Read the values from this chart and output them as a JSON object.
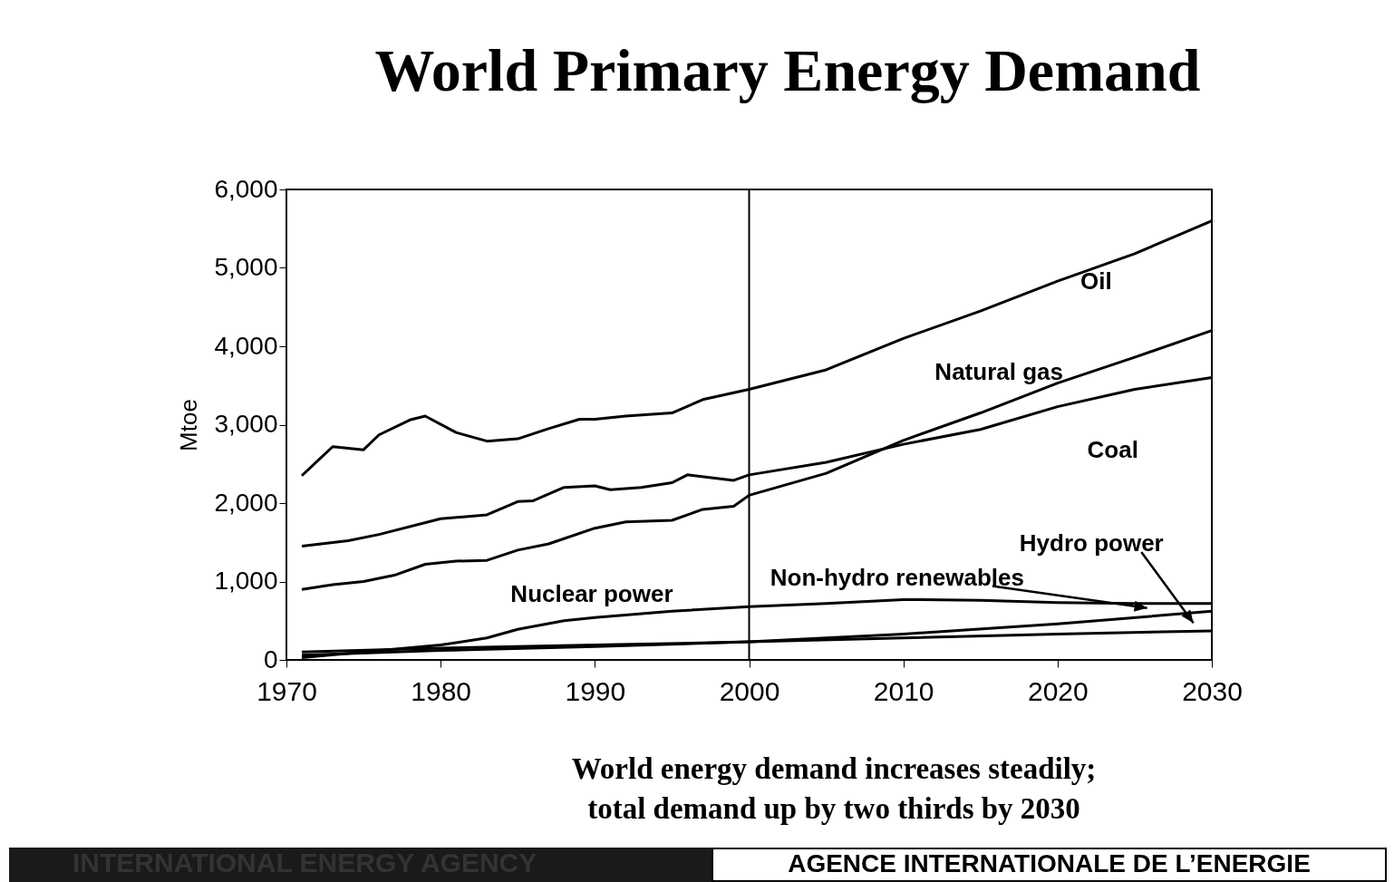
{
  "chart_data": {
    "type": "line",
    "title": "World Primary Energy Demand",
    "ylabel": "Mtoe",
    "xlim": [
      1970,
      2030
    ],
    "xticks": [
      1970,
      1980,
      1990,
      2000,
      2010,
      2020,
      2030
    ],
    "ylim": [
      0,
      6000
    ],
    "yticks": [
      {
        "value": 0,
        "label": "0"
      },
      {
        "value": 1000,
        "label": "1,000"
      },
      {
        "value": 2000,
        "label": "2,000"
      },
      {
        "value": 3000,
        "label": "3,000"
      },
      {
        "value": 4000,
        "label": "4,000"
      },
      {
        "value": 5000,
        "label": "5,000"
      },
      {
        "value": 6000,
        "label": "6,000"
      }
    ],
    "grid": false,
    "legend": false,
    "marker": "none",
    "line_style": "solid",
    "series": [
      {
        "name": "Oil",
        "color": "#000000",
        "x": [
          1971,
          1973,
          1975,
          1976,
          1978,
          1979,
          1981,
          1983,
          1985,
          1987,
          1989,
          1990,
          1992,
          1995,
          1997,
          2000,
          2005,
          2010,
          2015,
          2020,
          2025,
          2030
        ],
        "values": [
          2350,
          2720,
          2680,
          2870,
          3060,
          3110,
          2900,
          2790,
          2820,
          2950,
          3070,
          3070,
          3110,
          3150,
          3320,
          3450,
          3700,
          4100,
          4450,
          4830,
          5180,
          5600
        ]
      },
      {
        "name": "Natural gas",
        "color": "#000000",
        "x": [
          1971,
          1973,
          1975,
          1977,
          1979,
          1981,
          1983,
          1985,
          1987,
          1990,
          1992,
          1995,
          1997,
          1999,
          2000,
          2005,
          2010,
          2015,
          2020,
          2025,
          2030
        ],
        "values": [
          900,
          960,
          1000,
          1080,
          1220,
          1260,
          1270,
          1400,
          1480,
          1680,
          1760,
          1780,
          1920,
          1960,
          2100,
          2380,
          2800,
          3150,
          3530,
          3860,
          4200
        ]
      },
      {
        "name": "Coal",
        "color": "#000000",
        "x": [
          1971,
          1974,
          1976,
          1980,
          1983,
          1985,
          1986,
          1988,
          1990,
          1991,
          1993,
          1995,
          1996,
          1999,
          2000,
          2005,
          2010,
          2015,
          2020,
          2025,
          2030
        ],
        "values": [
          1450,
          1520,
          1600,
          1800,
          1850,
          2020,
          2030,
          2200,
          2220,
          2170,
          2200,
          2260,
          2360,
          2290,
          2360,
          2520,
          2750,
          2940,
          3230,
          3450,
          3600
        ]
      },
      {
        "name": "Hydro power",
        "color": "#000000",
        "x": [
          1971,
          1980,
          1990,
          2000,
          2010,
          2020,
          2030
        ],
        "values": [
          100,
          150,
          190,
          230,
          280,
          330,
          370
        ]
      },
      {
        "name": "Non-hydro renewables",
        "color": "#000000",
        "x": [
          1971,
          1980,
          1990,
          2000,
          2010,
          2020,
          2030
        ],
        "values": [
          60,
          120,
          170,
          230,
          330,
          460,
          620
        ]
      },
      {
        "name": "Nuclear power",
        "color": "#000000",
        "x": [
          1971,
          1975,
          1980,
          1983,
          1985,
          1988,
          1990,
          1995,
          2000,
          2005,
          2010,
          2015,
          2020,
          2025,
          2030
        ],
        "values": [
          30,
          100,
          190,
          280,
          390,
          500,
          540,
          620,
          680,
          720,
          770,
          760,
          730,
          720,
          720
        ]
      }
    ],
    "ref_lines": [
      {
        "axis": "x",
        "value": 2000,
        "color": "#000000"
      }
    ],
    "annotations": [
      "World energy demand increases steadily; total demand up by two thirds by 2030",
      "INTERNATIONAL ENERGY AGENCY",
      "AGENCE INTERNATIONALE DE L’ENERGIE"
    ]
  }
}
